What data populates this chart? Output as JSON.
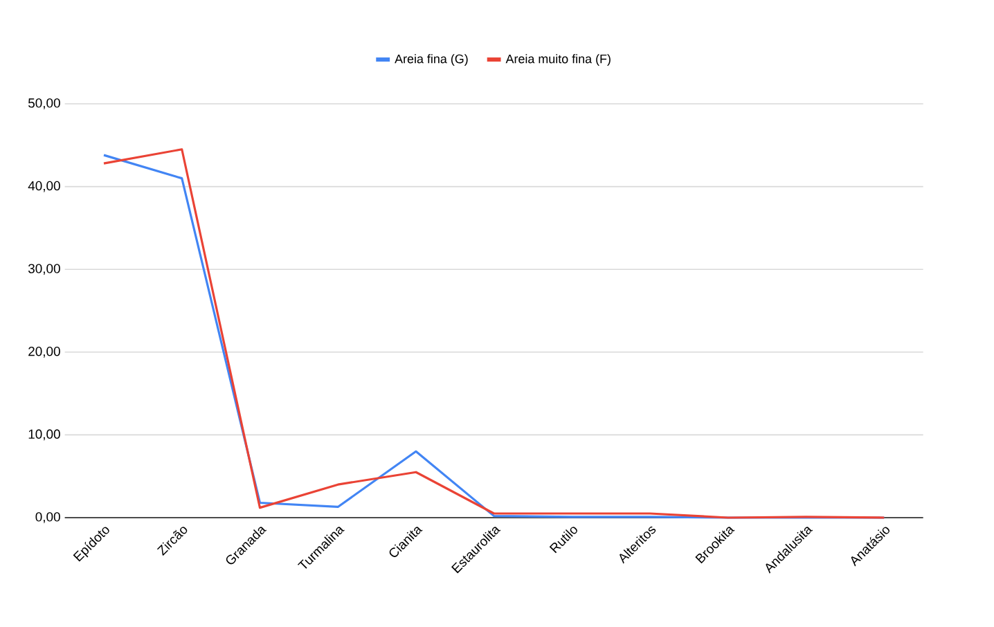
{
  "chart_data": {
    "type": "line",
    "categories": [
      "Epídoto",
      "Zircão",
      "Granada",
      "Turmalina",
      "Cianita",
      "Estaurolita",
      "Rutilo",
      "Alteritos",
      "Brookita",
      "Andalusita",
      "Anatásio"
    ],
    "series": [
      {
        "name": "Areia fina (G)",
        "color": "#4285f4",
        "values": [
          43.8,
          41.0,
          1.8,
          1.3,
          8.0,
          0.2,
          0.1,
          0.1,
          0.0,
          0.0,
          0.0
        ]
      },
      {
        "name": "Areia muito fina (F)",
        "color": "#ea4335",
        "values": [
          42.8,
          44.5,
          1.2,
          4.0,
          5.5,
          0.5,
          0.5,
          0.5,
          0.0,
          0.1,
          0.0
        ]
      }
    ],
    "ylim": [
      0,
      50
    ],
    "yticks": [
      {
        "value": 0,
        "label": "0,00"
      },
      {
        "value": 10,
        "label": "10,00"
      },
      {
        "value": 20,
        "label": "20,00"
      },
      {
        "value": 30,
        "label": "30,00"
      },
      {
        "value": 40,
        "label": "40,00"
      },
      {
        "value": 50,
        "label": "50,00"
      }
    ],
    "grid": "y",
    "legend": "top",
    "marker": "none",
    "line_style": "solid"
  }
}
